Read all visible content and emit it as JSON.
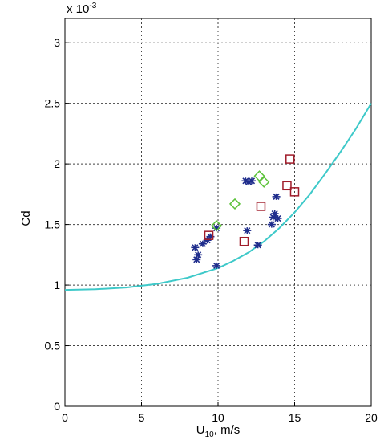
{
  "chart_data": {
    "type": "scatter",
    "xlabel_main": "U",
    "xlabel_sub": "10",
    "xlabel_rest": ", m/s",
    "ylabel": "Cd",
    "scale_label_base": "x 10",
    "scale_label_exp": "-3",
    "xlim": [
      0,
      20
    ],
    "ylim": [
      0,
      3.2
    ],
    "x_ticks": [
      0,
      5,
      10,
      15,
      20
    ],
    "y_ticks": [
      0,
      0.5,
      1,
      1.5,
      2,
      2.5,
      3
    ],
    "y_tick_labels": [
      "0",
      "0.5",
      "1",
      "1.5",
      "2",
      "2.5",
      "3"
    ],
    "grid": true,
    "series": [
      {
        "marker": "curve",
        "color": "#3ec9c9",
        "points": [
          [
            0,
            0.96
          ],
          [
            2,
            0.965
          ],
          [
            4,
            0.98
          ],
          [
            6,
            1.01
          ],
          [
            8,
            1.06
          ],
          [
            10,
            1.14
          ],
          [
            11,
            1.2
          ],
          [
            12,
            1.27
          ],
          [
            13,
            1.36
          ],
          [
            14,
            1.47
          ],
          [
            15,
            1.6
          ],
          [
            16,
            1.75
          ],
          [
            17,
            1.92
          ],
          [
            18,
            2.1
          ],
          [
            19,
            2.29
          ],
          [
            20,
            2.5
          ]
        ]
      },
      {
        "marker": "star",
        "color": "#1f2d8c",
        "points": [
          [
            8.5,
            1.31
          ],
          [
            8.6,
            1.21
          ],
          [
            8.7,
            1.25
          ],
          [
            9.0,
            1.34
          ],
          [
            9.3,
            1.37
          ],
          [
            9.5,
            1.4
          ],
          [
            9.9,
            1.16
          ],
          [
            9.9,
            1.47
          ],
          [
            11.8,
            1.86
          ],
          [
            12.0,
            1.85
          ],
          [
            12.2,
            1.86
          ],
          [
            11.9,
            1.45
          ],
          [
            12.6,
            1.33
          ],
          [
            13.5,
            1.5
          ],
          [
            13.6,
            1.56
          ],
          [
            13.7,
            1.59
          ],
          [
            13.9,
            1.55
          ],
          [
            13.8,
            1.73
          ]
        ]
      },
      {
        "marker": "square",
        "color": "#a01c2a",
        "points": [
          [
            9.4,
            1.41
          ],
          [
            11.7,
            1.36
          ],
          [
            12.8,
            1.65
          ],
          [
            14.5,
            1.82
          ],
          [
            14.7,
            2.04
          ],
          [
            15.0,
            1.77
          ]
        ]
      },
      {
        "marker": "diamond",
        "color": "#5cc23a",
        "points": [
          [
            9.9,
            1.49
          ],
          [
            11.1,
            1.67
          ],
          [
            12.7,
            1.9
          ],
          [
            13.0,
            1.85
          ]
        ]
      }
    ]
  }
}
